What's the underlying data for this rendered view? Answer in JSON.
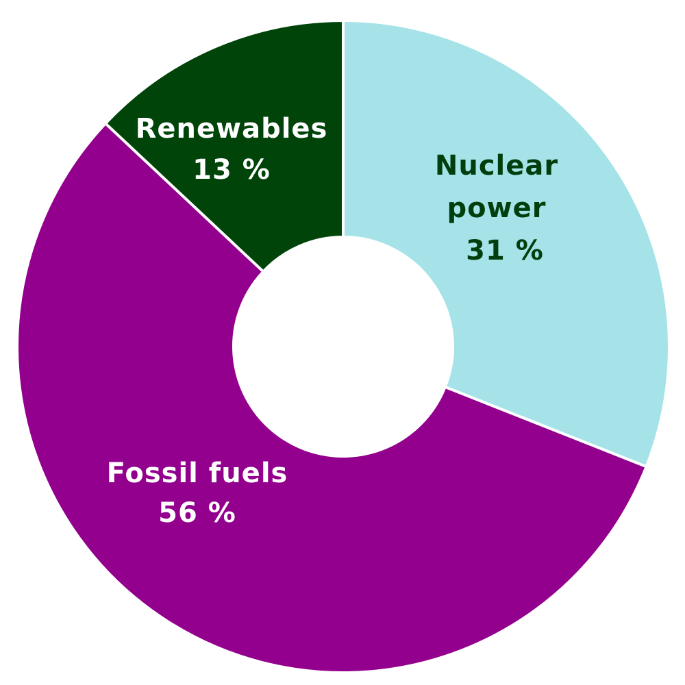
{
  "chart_data": {
    "type": "pie",
    "variant": "donut",
    "title": "",
    "slices": [
      {
        "label": "Nuclear\npower",
        "value": 31,
        "value_text": "31 %",
        "color": "#a5e3e8",
        "text_color": "#003f0d"
      },
      {
        "label": "Fossil fuels",
        "value": 56,
        "value_text": "56 %",
        "color": "#93008d",
        "text_color": "#ffffff"
      },
      {
        "label": "Renewables",
        "value": 13,
        "value_text": "13 %",
        "color": "#004409",
        "text_color": "#ffffff"
      }
    ],
    "start": "12 o'clock",
    "direction": "clockwise",
    "legend": "none",
    "background": "#ffffff"
  }
}
